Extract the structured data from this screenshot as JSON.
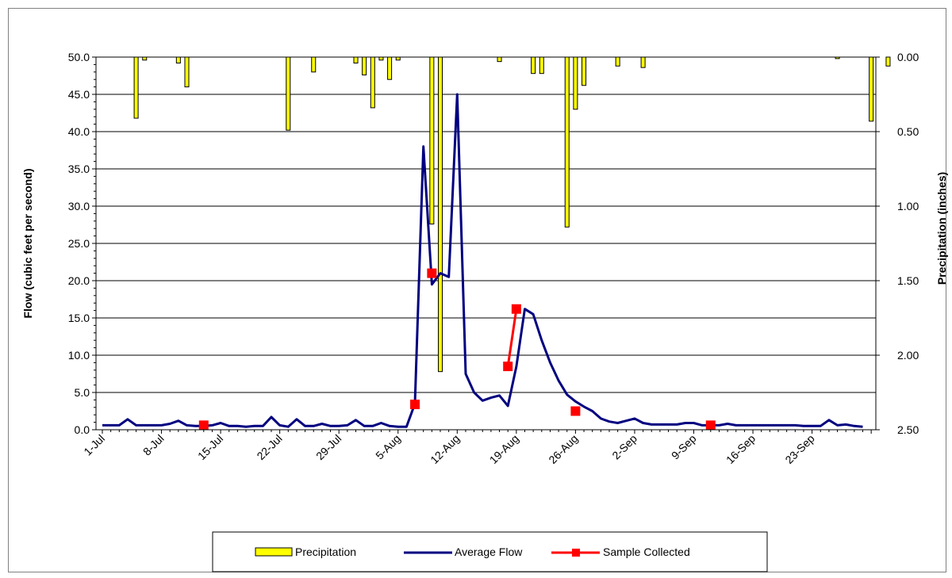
{
  "chart_data": {
    "type": "bar+line",
    "title": "",
    "ylabel_left": "Flow (cubic feet per second)",
    "ylabel_right": "Precipitation (inches)",
    "y_left_range": [
      0,
      50
    ],
    "y_left_ticks": [
      "0.0",
      "5.0",
      "10.0",
      "15.0",
      "20.0",
      "25.0",
      "30.0",
      "35.0",
      "40.0",
      "45.0",
      "50.0"
    ],
    "y_right_range": [
      0,
      2.5
    ],
    "y_right_reversed": true,
    "y_right_ticks": [
      "0.00",
      "0.50",
      "1.00",
      "1.50",
      "2.00",
      "2.50"
    ],
    "x_dates": [
      "1-Jul",
      "8-Jul",
      "15-Jul",
      "22-Jul",
      "29-Jul",
      "5-Aug",
      "12-Aug",
      "19-Aug",
      "26-Aug",
      "2-Sep",
      "9-Sep",
      "16-Sep",
      "23-Sep"
    ],
    "x_day_range": [
      1,
      92
    ],
    "grid": "horizontal",
    "legend_placement": "bottom",
    "colors": {
      "precipitation_fill": "#ffff00",
      "precipitation_edge": "#000000",
      "flow_line": "#000080",
      "sample_line": "#ff0000"
    },
    "series": [
      {
        "name": "Precipitation",
        "kind": "bar",
        "axis": "right",
        "points": [
          [
            5,
            0.41
          ],
          [
            6,
            0.02
          ],
          [
            10,
            0.04
          ],
          [
            11,
            0.2
          ],
          [
            23,
            0.49
          ],
          [
            26,
            0.1
          ],
          [
            31,
            0.04
          ],
          [
            32,
            0.12
          ],
          [
            33,
            0.34
          ],
          [
            34,
            0.02
          ],
          [
            35,
            0.15
          ],
          [
            36,
            0.02
          ],
          [
            40,
            1.12
          ],
          [
            41,
            2.11
          ],
          [
            48,
            0.03
          ],
          [
            52,
            0.11
          ],
          [
            53,
            0.11
          ],
          [
            56,
            1.14
          ],
          [
            57,
            0.35
          ],
          [
            58,
            0.19
          ],
          [
            62,
            0.06
          ],
          [
            65,
            0.07
          ],
          [
            88,
            0.01
          ],
          [
            92,
            0.43
          ],
          [
            94,
            0.06
          ]
        ]
      },
      {
        "name": "Average Flow",
        "kind": "line",
        "axis": "left",
        "points": [
          [
            1,
            0.6
          ],
          [
            2,
            0.6
          ],
          [
            3,
            0.6
          ],
          [
            4,
            1.4
          ],
          [
            5,
            0.6
          ],
          [
            6,
            0.6
          ],
          [
            7,
            0.6
          ],
          [
            8,
            0.6
          ],
          [
            9,
            0.8
          ],
          [
            10,
            1.2
          ],
          [
            11,
            0.6
          ],
          [
            12,
            0.5
          ],
          [
            13,
            0.5
          ],
          [
            14,
            0.6
          ],
          [
            15,
            0.9
          ],
          [
            16,
            0.5
          ],
          [
            17,
            0.5
          ],
          [
            18,
            0.4
          ],
          [
            19,
            0.5
          ],
          [
            20,
            0.5
          ],
          [
            21,
            1.7
          ],
          [
            22,
            0.6
          ],
          [
            23,
            0.4
          ],
          [
            24,
            1.4
          ],
          [
            25,
            0.5
          ],
          [
            26,
            0.5
          ],
          [
            27,
            0.8
          ],
          [
            28,
            0.5
          ],
          [
            29,
            0.5
          ],
          [
            30,
            0.6
          ],
          [
            31,
            1.3
          ],
          [
            32,
            0.5
          ],
          [
            33,
            0.5
          ],
          [
            34,
            0.9
          ],
          [
            35,
            0.5
          ],
          [
            36,
            0.4
          ],
          [
            37,
            0.4
          ],
          [
            38,
            3.5
          ],
          [
            39,
            38.0
          ],
          [
            40,
            19.5
          ],
          [
            41,
            21.0
          ],
          [
            42,
            20.5
          ],
          [
            43,
            45.0
          ],
          [
            44,
            7.5
          ],
          [
            45,
            5.0
          ],
          [
            46,
            3.9
          ],
          [
            47,
            4.3
          ],
          [
            48,
            4.6
          ],
          [
            49,
            3.2
          ],
          [
            50,
            8.5
          ],
          [
            51,
            16.2
          ],
          [
            52,
            15.5
          ],
          [
            53,
            12.0
          ],
          [
            54,
            9.0
          ],
          [
            55,
            6.6
          ],
          [
            56,
            4.7
          ],
          [
            57,
            3.8
          ],
          [
            58,
            3.1
          ],
          [
            59,
            2.5
          ],
          [
            60,
            1.5
          ],
          [
            61,
            1.1
          ],
          [
            62,
            0.9
          ],
          [
            63,
            1.2
          ],
          [
            64,
            1.5
          ],
          [
            65,
            0.9
          ],
          [
            66,
            0.7
          ],
          [
            67,
            0.7
          ],
          [
            68,
            0.7
          ],
          [
            69,
            0.7
          ],
          [
            70,
            0.9
          ],
          [
            71,
            0.9
          ],
          [
            72,
            0.6
          ],
          [
            73,
            0.6
          ],
          [
            74,
            0.6
          ],
          [
            75,
            0.8
          ],
          [
            76,
            0.6
          ],
          [
            77,
            0.6
          ],
          [
            78,
            0.6
          ],
          [
            79,
            0.6
          ],
          [
            80,
            0.6
          ],
          [
            81,
            0.6
          ],
          [
            82,
            0.6
          ],
          [
            83,
            0.6
          ],
          [
            84,
            0.5
          ],
          [
            85,
            0.5
          ],
          [
            86,
            0.5
          ],
          [
            87,
            1.3
          ],
          [
            88,
            0.6
          ],
          [
            89,
            0.7
          ],
          [
            90,
            0.5
          ],
          [
            91,
            0.4
          ]
        ]
      },
      {
        "name": "Sample Collected",
        "kind": "line-markers",
        "axis": "left",
        "points": [
          [
            13,
            0.6
          ],
          [
            38,
            3.4
          ],
          [
            40,
            21.0
          ],
          [
            49,
            8.5
          ],
          [
            50,
            16.2
          ],
          [
            57,
            2.5
          ],
          [
            73,
            0.6
          ]
        ],
        "segments": [
          [
            0
          ],
          [
            1
          ],
          [
            2
          ],
          [
            3,
            4
          ],
          [
            5
          ],
          [
            6
          ]
        ]
      }
    ]
  }
}
